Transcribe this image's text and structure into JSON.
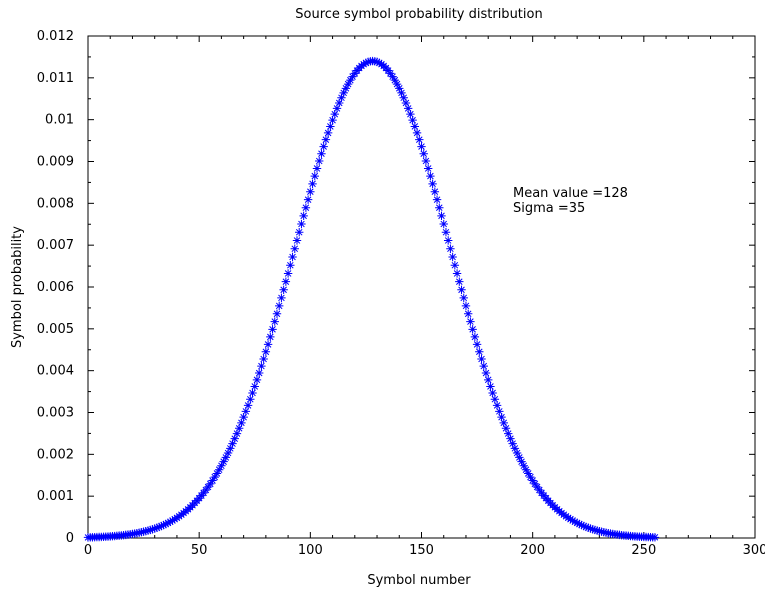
{
  "chart_data": {
    "type": "scatter",
    "title": "Source symbol probability distribution",
    "xlabel": "Symbol number",
    "ylabel": "Symbol probability",
    "xlim": [
      0,
      300
    ],
    "ylim": [
      0,
      0.012
    ],
    "xticks": [
      "0",
      "50",
      "100",
      "150",
      "200",
      "250",
      "300"
    ],
    "yticks": [
      "0",
      "0.001",
      "0.002",
      "0.003",
      "0.004",
      "0.005",
      "0.006",
      "0.007",
      "0.008",
      "0.009",
      "0.01",
      "0.011",
      "0.012"
    ],
    "grid": false,
    "marker": "asterisk",
    "series": [
      {
        "color": "#0000ff",
        "distribution": "gaussian",
        "mean": 128,
        "sigma": 35,
        "x_start": 0,
        "x_end": 255,
        "x_step": 1,
        "peak": 0.0114
      }
    ],
    "annotations": [
      "Mean value =128",
      "Sigma =35"
    ]
  }
}
